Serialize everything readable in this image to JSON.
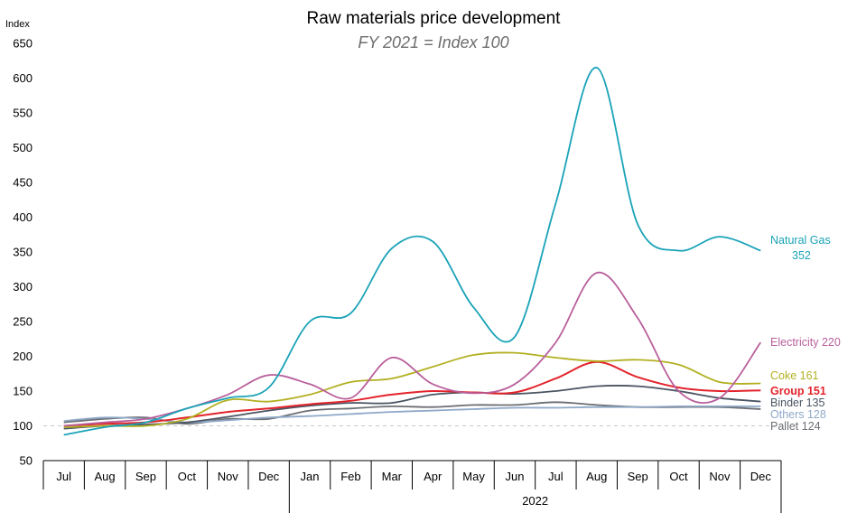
{
  "chart_data": {
    "type": "line",
    "title": "Raw materials price development",
    "subtitle": "FY 2021 = Index 100",
    "ylabel": "Index",
    "ylim": [
      50,
      650
    ],
    "yticks": [
      50,
      100,
      150,
      200,
      250,
      300,
      350,
      400,
      450,
      500,
      550,
      600,
      650
    ],
    "categories": [
      "Jul",
      "Aug",
      "Sep",
      "Oct",
      "Nov",
      "Dec",
      "Jan",
      "Feb",
      "Mar",
      "Apr",
      "May",
      "Jun",
      "Jul",
      "Aug",
      "Sep",
      "Oct",
      "Nov",
      "Dec"
    ],
    "year_group": {
      "label": "2022",
      "start_index": 6,
      "end_index": 17
    },
    "baseline": 100,
    "grid": false,
    "series": [
      {
        "name": "Natural Gas",
        "value_label": "352",
        "color": "#1aa3b8",
        "values": [
          87,
          98,
          105,
          125,
          140,
          155,
          250,
          262,
          355,
          365,
          270,
          228,
          420,
          615,
          390,
          352,
          372,
          352
        ]
      },
      {
        "name": "Electricity",
        "value_label": "220",
        "color": "#b95f9b",
        "values": [
          100,
          105,
          110,
          125,
          145,
          173,
          160,
          140,
          198,
          160,
          147,
          160,
          220,
          320,
          255,
          150,
          140,
          220
        ]
      },
      {
        "name": "Coke",
        "value_label": "161",
        "color": "#b3b021",
        "values": [
          98,
          100,
          100,
          110,
          137,
          135,
          145,
          163,
          168,
          185,
          202,
          205,
          198,
          193,
          195,
          188,
          163,
          161
        ]
      },
      {
        "name": "Group",
        "value_label": "151",
        "color": "#e3232b",
        "values": [
          100,
          103,
          105,
          112,
          120,
          125,
          131,
          136,
          145,
          150,
          148,
          148,
          168,
          192,
          170,
          155,
          150,
          151
        ]
      },
      {
        "name": "Binder",
        "value_label": "135",
        "color": "#4b5563",
        "values": [
          96,
          100,
          102,
          105,
          113,
          122,
          129,
          133,
          133,
          145,
          148,
          146,
          150,
          157,
          157,
          150,
          140,
          135
        ]
      },
      {
        "name": "Others",
        "value_label": "128",
        "color": "#8fa8c8",
        "values": [
          107,
          112,
          110,
          105,
          108,
          112,
          114,
          117,
          120,
          122,
          124,
          126,
          126,
          127,
          127,
          128,
          128,
          128
        ]
      },
      {
        "name": "Pallet",
        "value_label": "124",
        "color": "#6b6e73",
        "values": [
          105,
          110,
          112,
          103,
          110,
          110,
          122,
          125,
          128,
          127,
          130,
          130,
          134,
          130,
          127,
          127,
          127,
          124
        ]
      }
    ]
  }
}
